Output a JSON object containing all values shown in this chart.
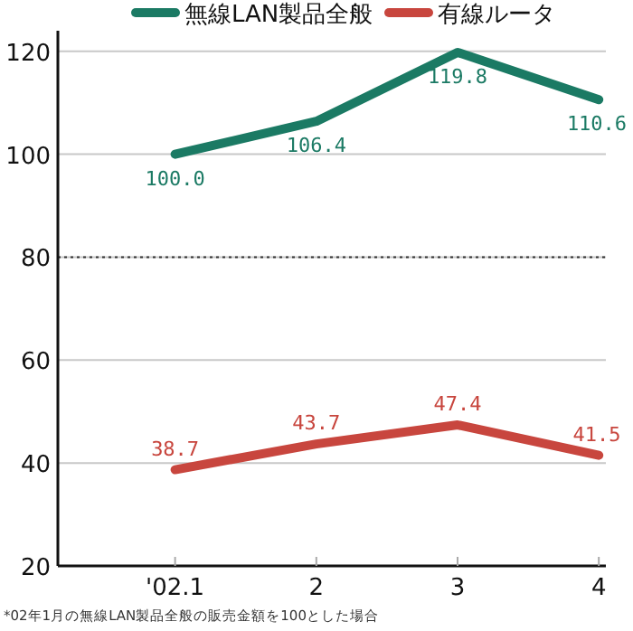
{
  "chart_data": {
    "type": "line",
    "categories": [
      "'02.1",
      "2",
      "3",
      "4"
    ],
    "series": [
      {
        "name": "無線LAN製品全般",
        "color": "#1b7a64",
        "values": [
          100.0,
          106.4,
          119.8,
          110.6
        ],
        "value_labels": [
          "100.0",
          "106.4",
          "119.8",
          "110.6"
        ]
      },
      {
        "name": "有線ルータ",
        "color": "#c8463e",
        "values": [
          38.7,
          43.7,
          47.4,
          41.5
        ],
        "value_labels": [
          "38.7",
          "43.7",
          "47.4",
          "41.5"
        ]
      }
    ],
    "ylim": [
      20,
      124
    ],
    "yticks": [
      20,
      40,
      60,
      80,
      100,
      120
    ],
    "grid": "y",
    "legend": "top",
    "marker": "none",
    "line_style": "solid",
    "ref_lines": [
      {
        "axis": "y",
        "value": 80,
        "color": "#333333",
        "line_style": "dotted"
      }
    ],
    "annotations": [
      "*02年1月の無線LAN製品全般の販売金額を100とした場合"
    ]
  }
}
